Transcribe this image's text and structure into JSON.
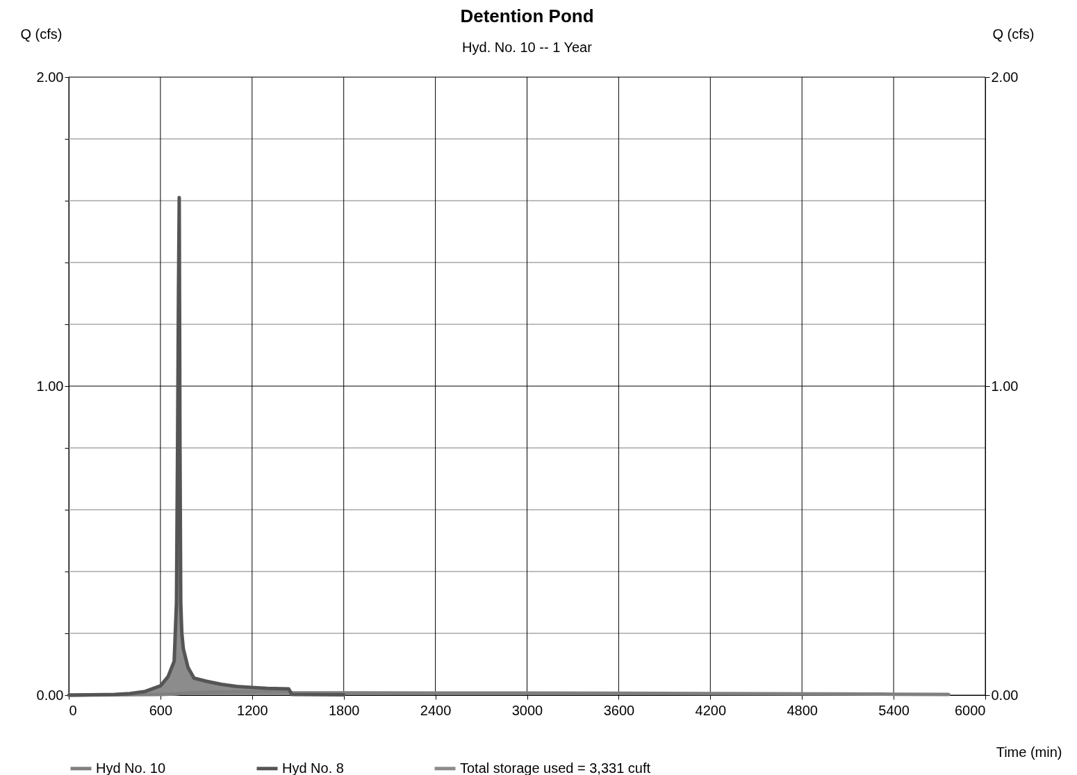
{
  "chart_data": {
    "type": "line",
    "title": "Detention Pond",
    "subtitle": "Hyd. No. 10 -- 1 Year",
    "xlabel": "Time (min)",
    "ylabel": "Q (cfs)",
    "y2label": "Q (cfs)",
    "xlim": [
      0,
      6000
    ],
    "xticks": [
      0,
      600,
      1200,
      1800,
      2400,
      3000,
      3600,
      4200,
      4800,
      5400,
      6000
    ],
    "ylim": [
      0,
      2
    ],
    "yticks": [
      {
        "value": 0,
        "label": "0.00"
      },
      {
        "value": 0.2,
        "label": null
      },
      {
        "value": 0.4,
        "label": null
      },
      {
        "value": 0.6,
        "label": null
      },
      {
        "value": 0.8,
        "label": null
      },
      {
        "value": 1,
        "label": "1.00"
      },
      {
        "value": 1.2,
        "label": null
      },
      {
        "value": 1.4,
        "label": null
      },
      {
        "value": 1.6,
        "label": null
      },
      {
        "value": 1.8,
        "label": null
      },
      {
        "value": 2,
        "label": "2.00"
      }
    ],
    "y2lim": [
      0,
      2
    ],
    "y2ticks": [
      {
        "value": 0,
        "label": "0.00"
      },
      {
        "value": 1,
        "label": "1.00"
      },
      {
        "value": 2,
        "label": "2.00"
      }
    ],
    "grid": true,
    "legend": "bottom",
    "line_style": "solid",
    "marker": "none",
    "series": [
      {
        "name": "Hyd No. 10",
        "color": "#808080",
        "x": [
          0,
          300,
          600,
          700,
          720,
          800,
          1000,
          1200,
          1440,
          1460,
          2400,
          3600,
          4200,
          5400,
          5760
        ],
        "values": [
          0,
          0.001,
          0.002,
          0.004,
          0.005,
          0.008,
          0.01,
          0.011,
          0.012,
          0.008,
          0.007,
          0.006,
          0.005,
          0.003,
          0.002
        ]
      },
      {
        "name": "Hyd No. 8",
        "color": "#555555",
        "x": [
          0,
          300,
          400,
          500,
          600,
          650,
          690,
          705,
          712,
          718,
          723,
          728,
          733,
          740,
          750,
          780,
          820,
          900,
          1000,
          1100,
          1200,
          1300,
          1440,
          1460,
          1800
        ],
        "values": [
          0,
          0.002,
          0.005,
          0.012,
          0.03,
          0.06,
          0.11,
          0.3,
          0.8,
          1.3,
          1.61,
          0.8,
          0.3,
          0.2,
          0.15,
          0.09,
          0.055,
          0.045,
          0.035,
          0.028,
          0.025,
          0.022,
          0.02,
          0.002,
          0.001
        ]
      },
      {
        "name": "Total storage used = 3,331 cuft",
        "color": "#8c8c8c",
        "type": "area",
        "x": [
          0,
          300,
          400,
          500,
          600,
          650,
          690,
          705,
          712,
          718,
          723,
          728,
          733,
          740,
          750,
          780,
          820,
          900,
          1000,
          1100,
          1200,
          1300,
          1440,
          1460
        ],
        "values": [
          0,
          0.002,
          0.005,
          0.012,
          0.03,
          0.06,
          0.11,
          0.3,
          0.8,
          1.3,
          1.61,
          0.8,
          0.3,
          0.2,
          0.15,
          0.09,
          0.055,
          0.045,
          0.035,
          0.028,
          0.025,
          0.022,
          0.02,
          0.002
        ]
      }
    ]
  }
}
